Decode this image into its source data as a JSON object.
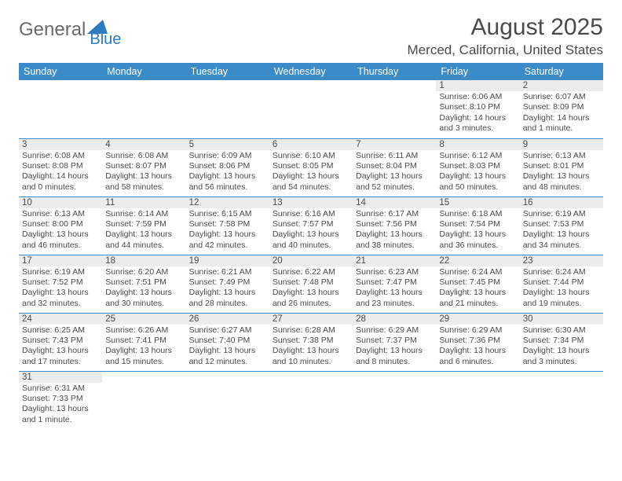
{
  "brand": {
    "part1": "General",
    "part2": "Blue"
  },
  "title": "August 2025",
  "location": "Merced, California, United States",
  "colors": {
    "header_bg": "#3b8bc8",
    "header_fg": "#ffffff",
    "row_divider": "#3b8bc8",
    "daynum_bg": "#ececec",
    "text": "#4a4a4a",
    "page_bg": "#ffffff",
    "brand_blue": "#2f7bbf"
  },
  "weekdays": [
    "Sunday",
    "Monday",
    "Tuesday",
    "Wednesday",
    "Thursday",
    "Friday",
    "Saturday"
  ],
  "weeks": [
    [
      null,
      null,
      null,
      null,
      null,
      {
        "n": "1",
        "sr": "Sunrise: 6:06 AM",
        "ss": "Sunset: 8:10 PM",
        "dl": "Daylight: 14 hours and 3 minutes."
      },
      {
        "n": "2",
        "sr": "Sunrise: 6:07 AM",
        "ss": "Sunset: 8:09 PM",
        "dl": "Daylight: 14 hours and 1 minute."
      }
    ],
    [
      {
        "n": "3",
        "sr": "Sunrise: 6:08 AM",
        "ss": "Sunset: 8:08 PM",
        "dl": "Daylight: 14 hours and 0 minutes."
      },
      {
        "n": "4",
        "sr": "Sunrise: 6:08 AM",
        "ss": "Sunset: 8:07 PM",
        "dl": "Daylight: 13 hours and 58 minutes."
      },
      {
        "n": "5",
        "sr": "Sunrise: 6:09 AM",
        "ss": "Sunset: 8:06 PM",
        "dl": "Daylight: 13 hours and 56 minutes."
      },
      {
        "n": "6",
        "sr": "Sunrise: 6:10 AM",
        "ss": "Sunset: 8:05 PM",
        "dl": "Daylight: 13 hours and 54 minutes."
      },
      {
        "n": "7",
        "sr": "Sunrise: 6:11 AM",
        "ss": "Sunset: 8:04 PM",
        "dl": "Daylight: 13 hours and 52 minutes."
      },
      {
        "n": "8",
        "sr": "Sunrise: 6:12 AM",
        "ss": "Sunset: 8:03 PM",
        "dl": "Daylight: 13 hours and 50 minutes."
      },
      {
        "n": "9",
        "sr": "Sunrise: 6:13 AM",
        "ss": "Sunset: 8:01 PM",
        "dl": "Daylight: 13 hours and 48 minutes."
      }
    ],
    [
      {
        "n": "10",
        "sr": "Sunrise: 6:13 AM",
        "ss": "Sunset: 8:00 PM",
        "dl": "Daylight: 13 hours and 46 minutes."
      },
      {
        "n": "11",
        "sr": "Sunrise: 6:14 AM",
        "ss": "Sunset: 7:59 PM",
        "dl": "Daylight: 13 hours and 44 minutes."
      },
      {
        "n": "12",
        "sr": "Sunrise: 6:15 AM",
        "ss": "Sunset: 7:58 PM",
        "dl": "Daylight: 13 hours and 42 minutes."
      },
      {
        "n": "13",
        "sr": "Sunrise: 6:16 AM",
        "ss": "Sunset: 7:57 PM",
        "dl": "Daylight: 13 hours and 40 minutes."
      },
      {
        "n": "14",
        "sr": "Sunrise: 6:17 AM",
        "ss": "Sunset: 7:56 PM",
        "dl": "Daylight: 13 hours and 38 minutes."
      },
      {
        "n": "15",
        "sr": "Sunrise: 6:18 AM",
        "ss": "Sunset: 7:54 PM",
        "dl": "Daylight: 13 hours and 36 minutes."
      },
      {
        "n": "16",
        "sr": "Sunrise: 6:19 AM",
        "ss": "Sunset: 7:53 PM",
        "dl": "Daylight: 13 hours and 34 minutes."
      }
    ],
    [
      {
        "n": "17",
        "sr": "Sunrise: 6:19 AM",
        "ss": "Sunset: 7:52 PM",
        "dl": "Daylight: 13 hours and 32 minutes."
      },
      {
        "n": "18",
        "sr": "Sunrise: 6:20 AM",
        "ss": "Sunset: 7:51 PM",
        "dl": "Daylight: 13 hours and 30 minutes."
      },
      {
        "n": "19",
        "sr": "Sunrise: 6:21 AM",
        "ss": "Sunset: 7:49 PM",
        "dl": "Daylight: 13 hours and 28 minutes."
      },
      {
        "n": "20",
        "sr": "Sunrise: 6:22 AM",
        "ss": "Sunset: 7:48 PM",
        "dl": "Daylight: 13 hours and 26 minutes."
      },
      {
        "n": "21",
        "sr": "Sunrise: 6:23 AM",
        "ss": "Sunset: 7:47 PM",
        "dl": "Daylight: 13 hours and 23 minutes."
      },
      {
        "n": "22",
        "sr": "Sunrise: 6:24 AM",
        "ss": "Sunset: 7:45 PM",
        "dl": "Daylight: 13 hours and 21 minutes."
      },
      {
        "n": "23",
        "sr": "Sunrise: 6:24 AM",
        "ss": "Sunset: 7:44 PM",
        "dl": "Daylight: 13 hours and 19 minutes."
      }
    ],
    [
      {
        "n": "24",
        "sr": "Sunrise: 6:25 AM",
        "ss": "Sunset: 7:43 PM",
        "dl": "Daylight: 13 hours and 17 minutes."
      },
      {
        "n": "25",
        "sr": "Sunrise: 6:26 AM",
        "ss": "Sunset: 7:41 PM",
        "dl": "Daylight: 13 hours and 15 minutes."
      },
      {
        "n": "26",
        "sr": "Sunrise: 6:27 AM",
        "ss": "Sunset: 7:40 PM",
        "dl": "Daylight: 13 hours and 12 minutes."
      },
      {
        "n": "27",
        "sr": "Sunrise: 6:28 AM",
        "ss": "Sunset: 7:38 PM",
        "dl": "Daylight: 13 hours and 10 minutes."
      },
      {
        "n": "28",
        "sr": "Sunrise: 6:29 AM",
        "ss": "Sunset: 7:37 PM",
        "dl": "Daylight: 13 hours and 8 minutes."
      },
      {
        "n": "29",
        "sr": "Sunrise: 6:29 AM",
        "ss": "Sunset: 7:36 PM",
        "dl": "Daylight: 13 hours and 6 minutes."
      },
      {
        "n": "30",
        "sr": "Sunrise: 6:30 AM",
        "ss": "Sunset: 7:34 PM",
        "dl": "Daylight: 13 hours and 3 minutes."
      }
    ],
    [
      {
        "n": "31",
        "sr": "Sunrise: 6:31 AM",
        "ss": "Sunset: 7:33 PM",
        "dl": "Daylight: 13 hours and 1 minute."
      },
      null,
      null,
      null,
      null,
      null,
      null
    ]
  ]
}
